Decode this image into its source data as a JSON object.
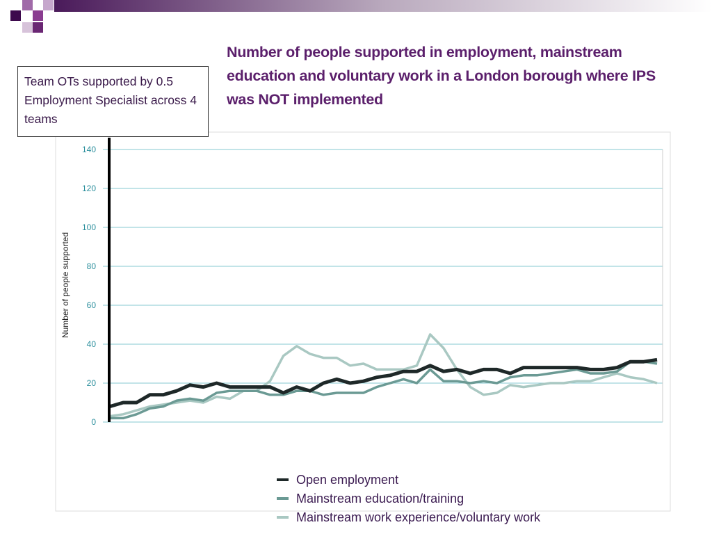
{
  "annotation": "Team OTs supported by 0.5 Employment Specialist across 4 teams",
  "chart_data": {
    "type": "line",
    "title": "Number of people supported in employment, mainstream education and voluntary work in a London borough where IPS was NOT implemented",
    "y_label": "Number of people supported",
    "categories": [
      null,
      null,
      null,
      null,
      null,
      null,
      null,
      null,
      null,
      null,
      null,
      null,
      null,
      null,
      null,
      null,
      null,
      null,
      null,
      null,
      null,
      null,
      null,
      null,
      null,
      null,
      null,
      null,
      null,
      null,
      null,
      null,
      null,
      null,
      null,
      null,
      null,
      null,
      null,
      null,
      null,
      null
    ],
    "ylim": [
      0,
      140
    ],
    "yticks": [
      0,
      20,
      40,
      60,
      80,
      100,
      120,
      140
    ],
    "grid": true,
    "series": [
      {
        "name": "Open employment",
        "color": "#1e2828",
        "width": 5,
        "values": [
          8,
          10,
          10,
          14,
          14,
          16,
          19,
          18,
          20,
          18,
          18,
          18,
          18,
          15,
          18,
          16,
          20,
          22,
          20,
          21,
          23,
          24,
          26,
          26,
          29,
          26,
          27,
          25,
          27,
          27,
          25,
          28,
          28,
          28,
          28,
          28,
          27,
          27,
          28,
          31,
          31,
          32
        ]
      },
      {
        "name": "Mainstream education/training",
        "color": "#6b9a94",
        "width": 3.5,
        "values": [
          2,
          2,
          4,
          7,
          8,
          11,
          12,
          11,
          15,
          16,
          16,
          16,
          14,
          14,
          16,
          16,
          14,
          15,
          15,
          15,
          18,
          20,
          22,
          20,
          27,
          21,
          21,
          20,
          21,
          20,
          23,
          24,
          24,
          25,
          26,
          27,
          25,
          25,
          26,
          31,
          31,
          30
        ]
      },
      {
        "name": "Mainstream work experience/voluntary work",
        "color": "#a9c8c2",
        "width": 3.5,
        "values": [
          3,
          4,
          6,
          8,
          9,
          10,
          11,
          10,
          13,
          12,
          16,
          16,
          21,
          34,
          39,
          35,
          33,
          33,
          29,
          30,
          27,
          27,
          27,
          29,
          45,
          38,
          27,
          18,
          14,
          15,
          19,
          18,
          19,
          20,
          20,
          21,
          21,
          23,
          25,
          23,
          22,
          20
        ]
      }
    ]
  }
}
